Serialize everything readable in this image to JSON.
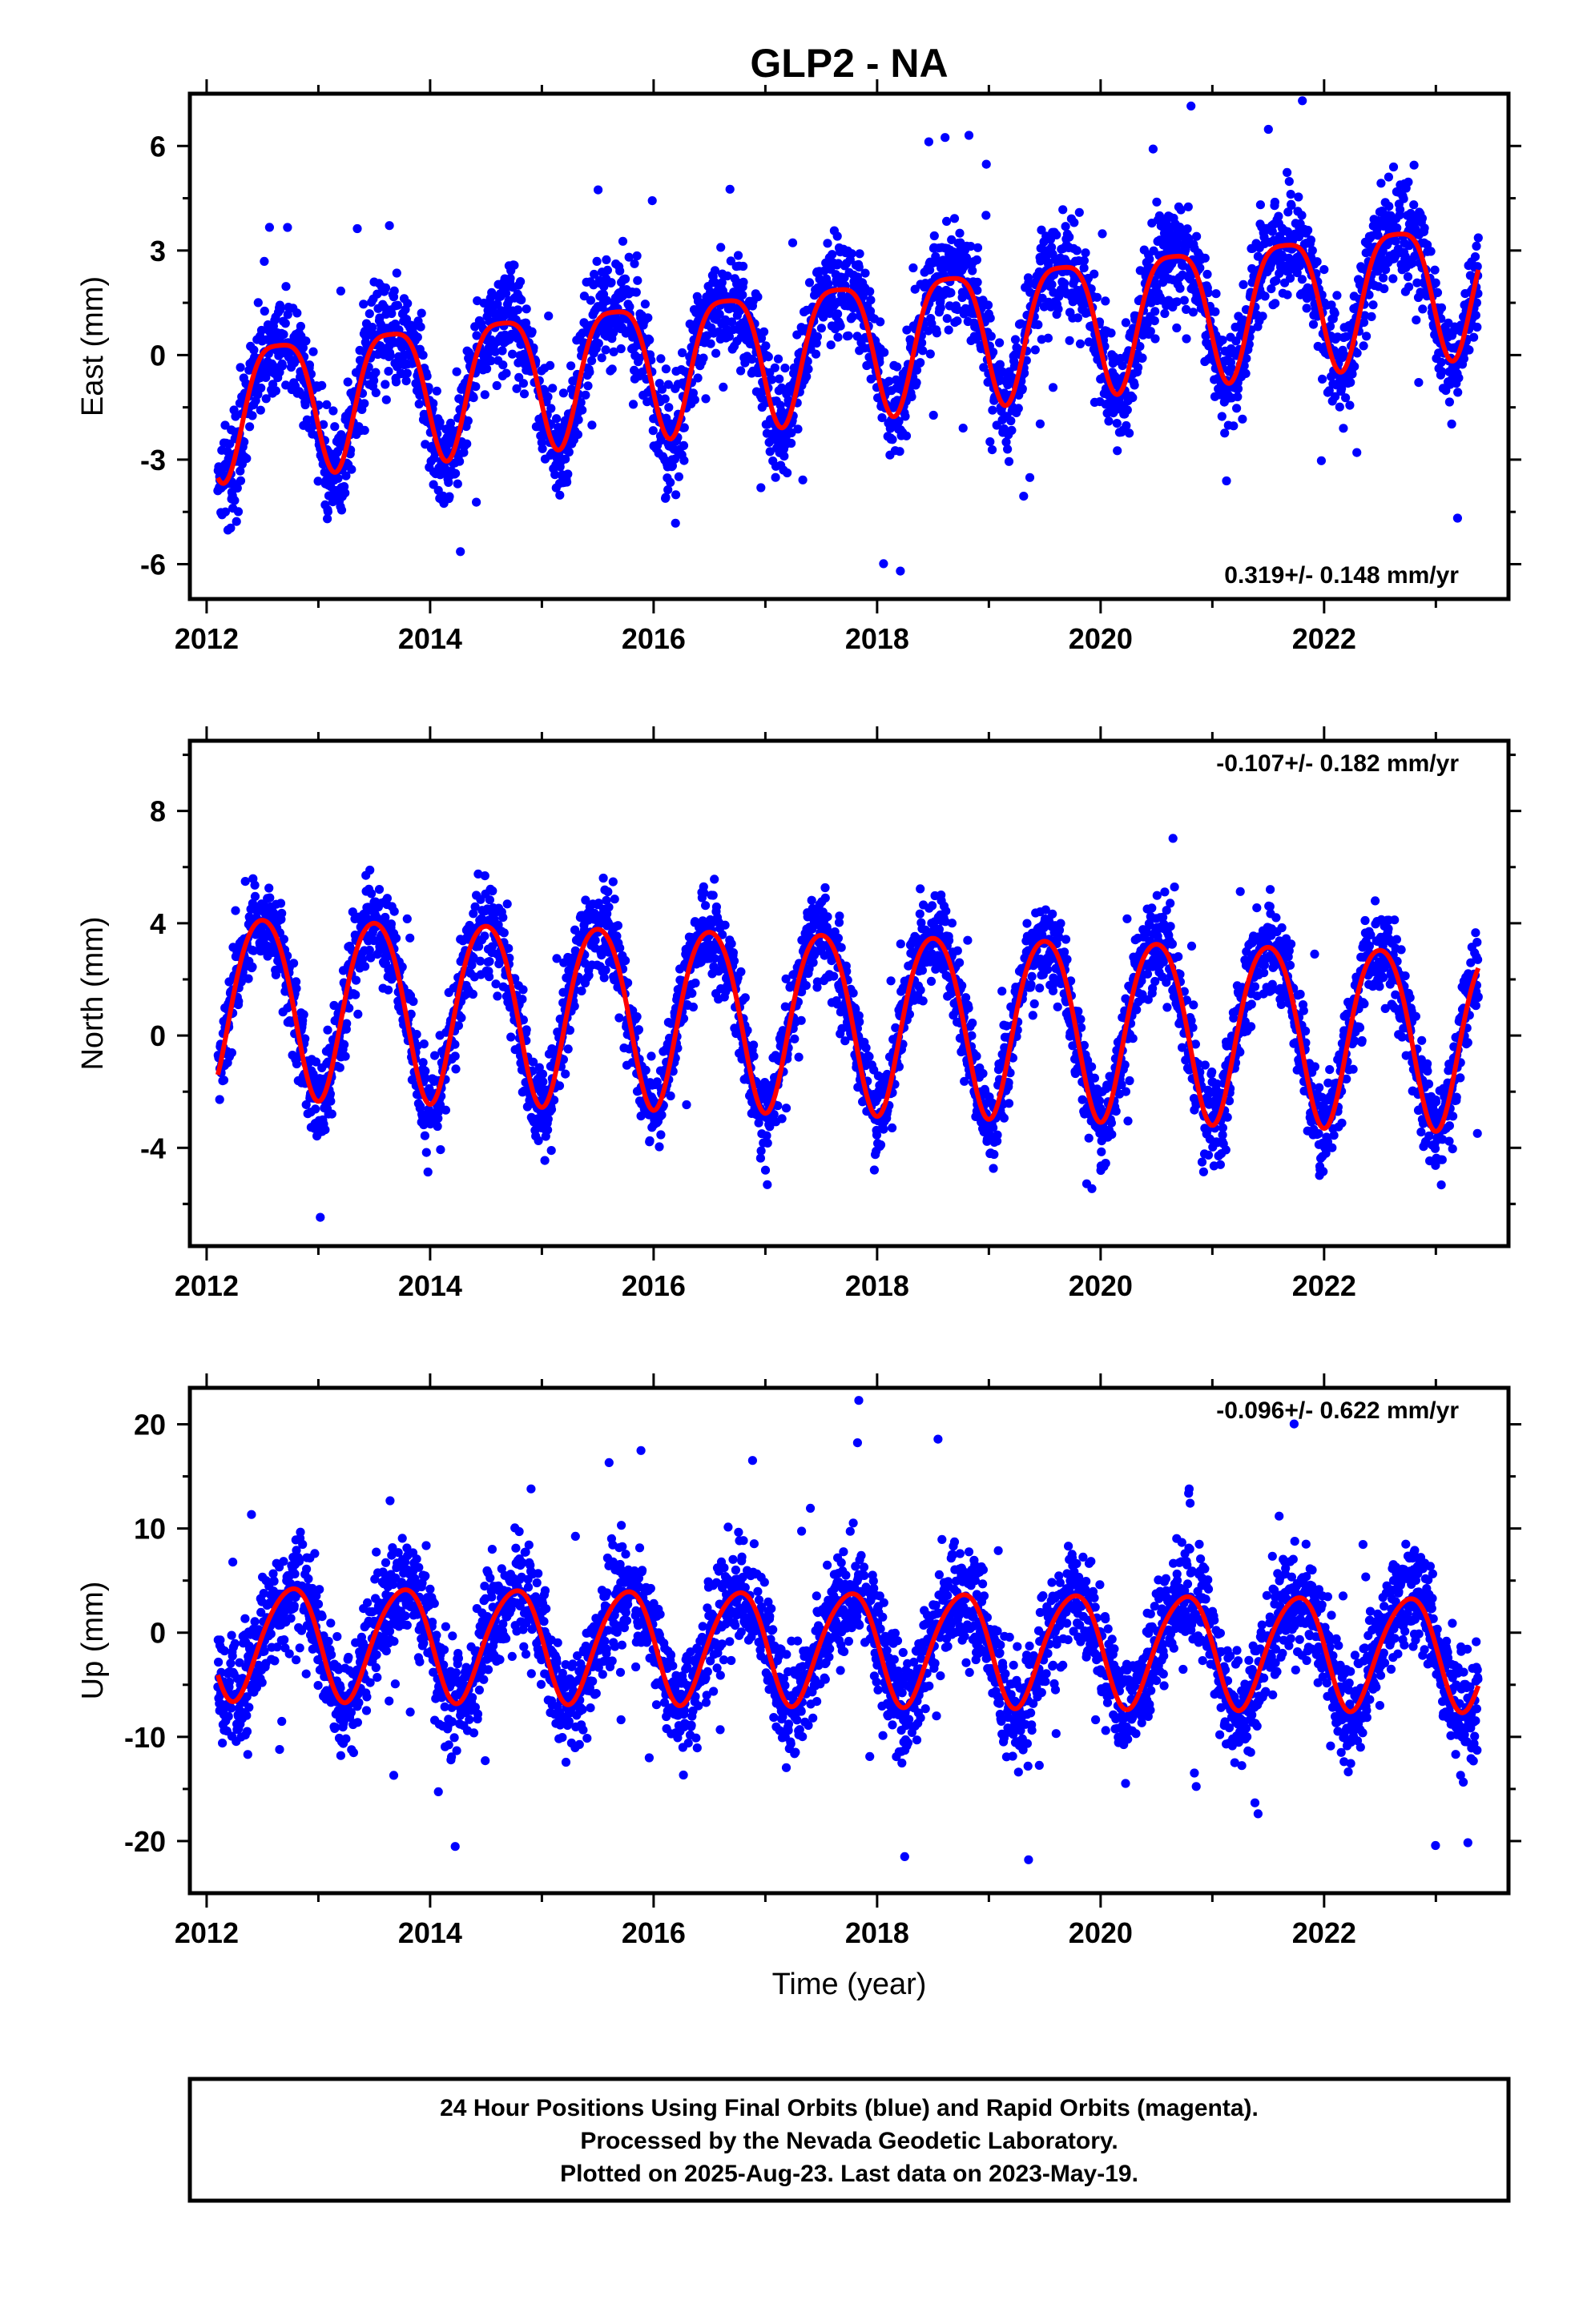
{
  "title": "GLP2 - NA",
  "xlabel": "Time (year)",
  "footer": {
    "line1": "24 Hour Positions Using Final Orbits (blue) and Rapid Orbits (magenta).",
    "line2": "Processed by the Nevada Geodetic Laboratory.",
    "line3": "Plotted on 2025-Aug-23. Last data on 2023-May-19."
  },
  "colors": {
    "final_orbits": "#0000ff",
    "fit": "#ff0000",
    "frame": "#000000"
  },
  "chart_data": [
    {
      "type": "scatter",
      "ylabel": "East (mm)",
      "rate_text": "0.319+/- 0.148 mm/yr",
      "rate_position": "bottom-right",
      "xlim": [
        2011.85,
        2023.65
      ],
      "ylim": [
        -7,
        7.5
      ],
      "xticks": [
        2012,
        2014,
        2016,
        2018,
        2020,
        2022
      ],
      "xtick_labels": [
        "2012",
        "2014",
        "2016",
        "2018",
        "2020",
        "2022"
      ],
      "yticks": [
        -6,
        -3,
        0,
        3,
        6
      ],
      "ytick_labels": [
        "-6",
        "-3",
        "0",
        "3",
        "6"
      ],
      "grid": false,
      "model": {
        "x0": 2012.1,
        "x1": 2023.38,
        "offset": -1.35,
        "trend": 0.319,
        "ref_year": 2012.1,
        "annual_amp": 1.9,
        "annual_phase": 2012.65,
        "semi_amp": 0.45,
        "semi_phase": 2012.9,
        "scatter_sd": 1.05,
        "outlier_rate": 0.012
      },
      "series": [
        {
          "name": "Final Orbits",
          "kind": "points"
        },
        {
          "name": "Model fit",
          "kind": "line"
        }
      ]
    },
    {
      "type": "scatter",
      "ylabel": "North (mm)",
      "rate_text": "-0.107+/- 0.182 mm/yr",
      "rate_position": "top-right",
      "xlim": [
        2011.85,
        2023.65
      ],
      "ylim": [
        -7.5,
        10.5
      ],
      "xticks": [
        2012,
        2014,
        2016,
        2018,
        2020,
        2022
      ],
      "xtick_labels": [
        "2012",
        "2014",
        "2016",
        "2018",
        "2020",
        "2022"
      ],
      "yticks": [
        -4,
        0,
        4,
        8
      ],
      "ytick_labels": [
        "-4",
        "0",
        "4",
        "8"
      ],
      "grid": false,
      "model": {
        "x0": 2012.1,
        "x1": 2023.38,
        "offset": 1.3,
        "trend": -0.107,
        "ref_year": 2012.1,
        "annual_amp": 3.2,
        "annual_phase": 2012.5,
        "semi_amp": 0.35,
        "semi_phase": 2012.75,
        "scatter_sd": 1.1,
        "outlier_rate": 0.01
      },
      "series": [
        {
          "name": "Final Orbits",
          "kind": "points"
        },
        {
          "name": "Model fit",
          "kind": "line"
        }
      ]
    },
    {
      "type": "scatter",
      "ylabel": "Up (mm)",
      "rate_text": "-0.096+/- 0.622 mm/yr",
      "rate_position": "top-right",
      "xlim": [
        2011.85,
        2023.65
      ],
      "ylim": [
        -25,
        23.5
      ],
      "xticks": [
        2012,
        2014,
        2016,
        2018,
        2020,
        2022
      ],
      "xtick_labels": [
        "2012",
        "2014",
        "2016",
        "2018",
        "2020",
        "2022"
      ],
      "yticks": [
        -20,
        -10,
        0,
        10,
        20
      ],
      "ytick_labels": [
        "-20",
        "-10",
        "0",
        "10",
        "20"
      ],
      "grid": false,
      "model": {
        "x0": 2012.1,
        "x1": 2023.38,
        "offset": -0.7,
        "trend": -0.096,
        "ref_year": 2012.1,
        "annual_amp": 5.4,
        "annual_phase": 2012.75,
        "semi_amp": 0.6,
        "semi_phase": 2012.95,
        "scatter_sd": 3.6,
        "outlier_rate": 0.012
      },
      "series": [
        {
          "name": "Final Orbits",
          "kind": "points"
        },
        {
          "name": "Model fit",
          "kind": "line"
        }
      ]
    }
  ]
}
